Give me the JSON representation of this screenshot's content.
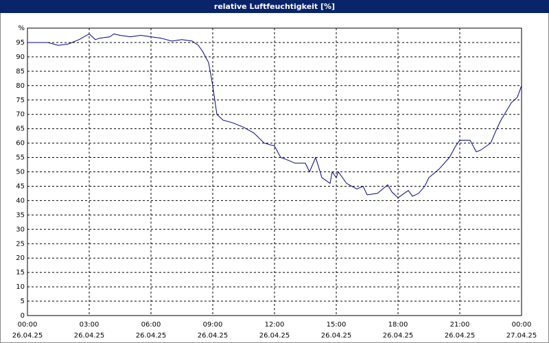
{
  "chart_data": {
    "type": "line",
    "title": "relative Luftfeuchtigkeit [%]",
    "x": [
      0,
      0.5,
      1,
      1.5,
      2,
      2.5,
      3,
      3.3,
      3.5,
      4,
      4.2,
      4.5,
      5,
      5.5,
      6,
      6.5,
      7,
      7.5,
      8,
      8.3,
      8.5,
      8.8,
      9,
      9.2,
      9.5,
      10,
      10.5,
      11,
      11.5,
      12,
      12.3,
      12.5,
      13,
      13.5,
      13.7,
      14,
      14.3,
      14.7,
      14.8,
      15,
      15.1,
      15.5,
      16,
      16.3,
      16.5,
      17,
      17.5,
      17.7,
      18,
      18.5,
      18.7,
      19,
      19.3,
      19.5,
      20,
      20.5,
      20.8,
      21,
      21.5,
      21.8,
      22,
      22.5,
      22.8,
      23,
      23.5,
      23.8,
      24
    ],
    "values": [
      95,
      95,
      95,
      94,
      94.5,
      96,
      98,
      96,
      96.5,
      97,
      98,
      97.5,
      97,
      97.5,
      97,
      96.5,
      95.5,
      96,
      95.5,
      94,
      92,
      88,
      80,
      70,
      68,
      67,
      65.5,
      63.5,
      60,
      59,
      55,
      54.5,
      53,
      53,
      50,
      55,
      48,
      46,
      50,
      48,
      50,
      46,
      44,
      45,
      42,
      42.5,
      45.5,
      43,
      41,
      43.5,
      41.5,
      42.5,
      45,
      48,
      51,
      55,
      59,
      61,
      61,
      57,
      57.5,
      60,
      65,
      68,
      74,
      76,
      80
    ],
    "color": "#000080",
    "xlim": [
      0,
      24
    ],
    "xticks": [
      {
        "value": 0,
        "label": "00:00"
      },
      {
        "value": 3,
        "label": "03:00"
      },
      {
        "value": 6,
        "label": "06:00"
      },
      {
        "value": 9,
        "label": "09:00"
      },
      {
        "value": 12,
        "label": "12:00"
      },
      {
        "value": 15,
        "label": "15:00"
      },
      {
        "value": 18,
        "label": "18:00"
      },
      {
        "value": 21,
        "label": "21:00"
      },
      {
        "value": 24,
        "label": "00:00"
      }
    ],
    "xtick_dates": [
      "26.04.25",
      "26.04.25",
      "26.04.25",
      "26.04.25",
      "26.04.25",
      "26.04.25",
      "26.04.25",
      "26.04.25",
      "27.04.25"
    ],
    "ylim": [
      0,
      100
    ],
    "yticks": [
      0,
      5,
      10,
      15,
      20,
      25,
      30,
      35,
      40,
      45,
      50,
      55,
      60,
      65,
      70,
      75,
      80,
      85,
      90,
      95,
      {
        "value": 100,
        "label": "%"
      }
    ],
    "grid": true
  }
}
